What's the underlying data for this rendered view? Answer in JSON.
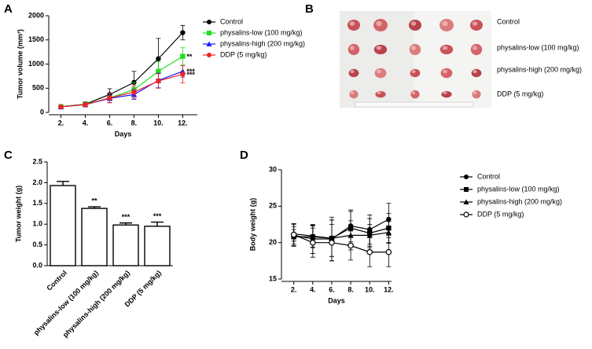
{
  "chart_data": [
    {
      "type": "line",
      "panel": "A",
      "xlabel": "Days",
      "ylabel": "Tumor volume (mm³)",
      "x": [
        2,
        4,
        6,
        8,
        10,
        12
      ],
      "xlim": [
        1,
        13.2
      ],
      "xticks": [
        {
          "value": 2,
          "label": "2."
        },
        {
          "value": 4,
          "label": "4."
        },
        {
          "value": 6,
          "label": "6."
        },
        {
          "value": 8,
          "label": "8."
        },
        {
          "value": 10,
          "label": "10."
        },
        {
          "value": 12,
          "label": "12."
        }
      ],
      "ylim": [
        0,
        2000
      ],
      "yticks": [
        0,
        500,
        1000,
        1500,
        2000
      ],
      "series": [
        {
          "name": "Control",
          "color": "#000000",
          "marker": "circle",
          "values": [
            120,
            170,
            370,
            620,
            1110,
            1650
          ],
          "errors": [
            20,
            50,
            120,
            230,
            420,
            150
          ]
        },
        {
          "name": "physalins-low (100 mg/kg)",
          "color": "#22dd22",
          "marker": "square",
          "values": [
            120,
            165,
            300,
            470,
            850,
            1160
          ],
          "errors": [
            20,
            50,
            100,
            150,
            200,
            180
          ],
          "significance": "**"
        },
        {
          "name": "physalins-high (200 mg/kg)",
          "color": "#1a1aff",
          "marker": "triangle",
          "values": [
            115,
            160,
            290,
            370,
            660,
            850
          ],
          "errors": [
            20,
            40,
            90,
            100,
            150,
            120
          ],
          "significance": "***"
        },
        {
          "name": "DDP (5 mg/kg)",
          "color": "#ee2222",
          "marker": "circle",
          "values": [
            115,
            160,
            300,
            420,
            650,
            790
          ],
          "errors": [
            20,
            40,
            100,
            130,
            150,
            180
          ],
          "significance": "***"
        }
      ]
    },
    {
      "type": "image",
      "panel": "B",
      "labels": [
        "Control",
        "physalins-low (100 mg/kg)",
        "physalins-high (200 mg/kg)",
        "DDP (5 mg/kg)"
      ]
    },
    {
      "type": "bar",
      "panel": "C",
      "ylabel": "Tumor weight (g)",
      "categories": [
        "Control",
        "physalins-low (100 mg/kg)",
        "physalins-high (200 mg/kg)",
        "DDP (5 mg/kg)"
      ],
      "values": [
        1.93,
        1.38,
        0.98,
        0.95
      ],
      "errors": [
        0.1,
        0.04,
        0.05,
        0.1
      ],
      "significance": [
        null,
        "**",
        "***",
        "***"
      ],
      "color": "#ffffff",
      "ylim": [
        0,
        2.5
      ],
      "yticks": [
        {
          "value": 0,
          "label": "0.0"
        },
        {
          "value": 0.5,
          "label": "0.5"
        },
        {
          "value": 1,
          "label": "1.0"
        },
        {
          "value": 1.5,
          "label": "1.5"
        },
        {
          "value": 2,
          "label": "2.0"
        },
        {
          "value": 2.5,
          "label": "2.5"
        }
      ]
    },
    {
      "type": "line",
      "panel": "D",
      "xlabel": "Days",
      "ylabel": "Body weight (g)",
      "x": [
        2,
        4,
        6,
        8,
        10,
        12
      ],
      "xlim": [
        0.7,
        12.3
      ],
      "xticks": [
        {
          "value": 2,
          "label": "2."
        },
        {
          "value": 4,
          "label": "4."
        },
        {
          "value": 6,
          "label": "6."
        },
        {
          "value": 8,
          "label": "8."
        },
        {
          "value": 10,
          "label": "10."
        },
        {
          "value": 12,
          "label": "12."
        }
      ],
      "ylim": [
        15,
        30
      ],
      "yticks": [
        15,
        20,
        25,
        30
      ],
      "series": [
        {
          "name": "Control",
          "color": "#000000",
          "marker": "circle",
          "values": [
            21.0,
            20.5,
            20.5,
            22.3,
            21.8,
            23.2
          ],
          "errors": [
            1.5,
            2,
            3,
            2.2,
            2,
            2.2
          ]
        },
        {
          "name": "physalins-low (100 mg/kg)",
          "color": "#000000",
          "marker": "square",
          "values": [
            20.8,
            20.8,
            20.6,
            22.0,
            21.3,
            22.0
          ],
          "errors": [
            1,
            1.5,
            2.5,
            2.3,
            2,
            2
          ]
        },
        {
          "name": "physalins-high (200 mg/kg)",
          "color": "#000000",
          "marker": "triangle",
          "values": [
            21.2,
            20.9,
            20.6,
            21.0,
            21.0,
            21.4
          ],
          "errors": [
            1,
            1.5,
            2.5,
            2,
            1.5,
            1.5
          ]
        },
        {
          "name": "DDP (5 mg/kg)",
          "color": "#000000",
          "marker": "open-circle",
          "values": [
            21.1,
            20.0,
            20.0,
            19.6,
            18.7,
            18.7
          ],
          "errors": [
            1.5,
            2,
            2.5,
            2,
            2,
            2
          ]
        }
      ]
    }
  ]
}
